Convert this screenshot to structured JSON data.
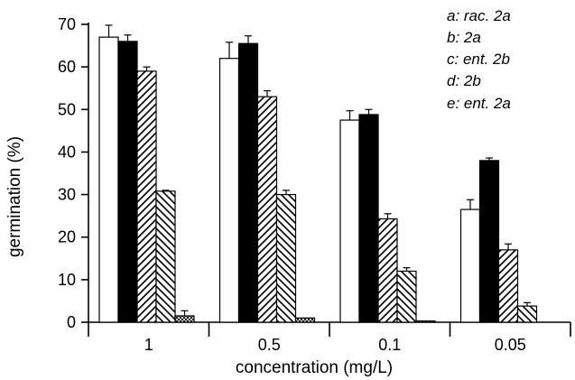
{
  "chart_data": {
    "type": "bar",
    "xlabel": "concentration (mg/L)",
    "ylabel": "germination (%)",
    "ylim": [
      0,
      70
    ],
    "yticks": [
      0,
      10,
      20,
      30,
      40,
      50,
      60,
      70
    ],
    "categories": [
      "1",
      "0.5",
      "0.1",
      "0.05"
    ],
    "legend_position": "top-right",
    "legend": [
      "a: rac. 2a",
      "b: 2a",
      "c: ent. 2b",
      "d: 2b",
      "e: ent. 2a"
    ],
    "series": [
      {
        "name": "a: rac. 2a",
        "pattern": "open",
        "values": [
          67,
          62,
          47.5,
          26.5
        ],
        "errors": [
          2.8,
          3.8,
          2.2,
          2.3
        ]
      },
      {
        "name": "b: 2a",
        "pattern": "solid",
        "values": [
          66,
          65.5,
          48.8,
          38
        ],
        "errors": [
          1.5,
          1.8,
          1.2,
          0.6
        ]
      },
      {
        "name": "c: ent. 2b",
        "pattern": "hatch-forward",
        "values": [
          59,
          53,
          24.3,
          17
        ],
        "errors": [
          1.0,
          1.4,
          1.2,
          1.4
        ]
      },
      {
        "name": "d: 2b",
        "pattern": "hatch-backward",
        "values": [
          30.8,
          30,
          12,
          3.8
        ],
        "errors": [
          0.2,
          1.0,
          0.8,
          0.8
        ]
      },
      {
        "name": "e: ent. 2a",
        "pattern": "crosshatch",
        "values": [
          1.5,
          1.0,
          0.3,
          0
        ],
        "errors": [
          1.2,
          0,
          0,
          0
        ]
      }
    ],
    "grid": false
  }
}
